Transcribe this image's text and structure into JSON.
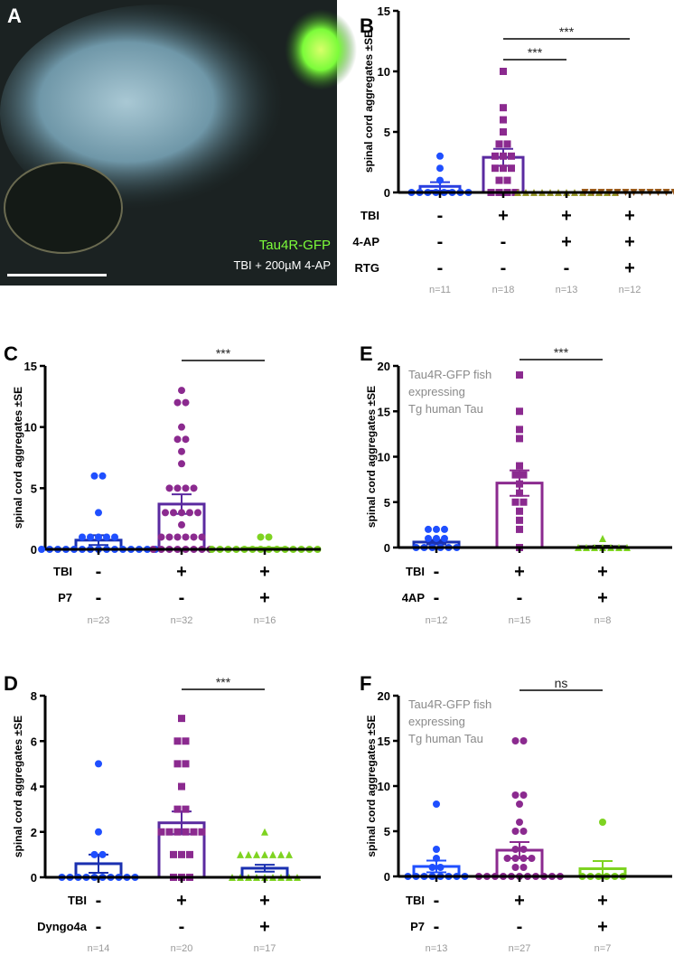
{
  "panel_a": {
    "letter": "A",
    "label_protein": "Tau4R-GFP",
    "label_condition": "TBI  + 200µM 4-AP",
    "colors": {
      "gfp": "#7CFC3A",
      "tissue": "#8fb8c8"
    }
  },
  "chart_data": [
    {
      "id": "B",
      "letter": "B",
      "type": "bar",
      "ylabel": "spinal cord aggregates ±SE",
      "ylim": [
        0,
        15
      ],
      "yticks": [
        0,
        5,
        10,
        15
      ],
      "conditions": [
        {
          "label": "TBI",
          "values": [
            "-",
            "+",
            "+",
            "+"
          ]
        },
        {
          "label": "4-AP",
          "values": [
            "-",
            "-",
            "+",
            "+"
          ]
        },
        {
          "label": "RTG",
          "values": [
            "-",
            "-",
            "-",
            "+"
          ]
        }
      ],
      "groups": [
        {
          "n": "n=11",
          "mean": 0.5,
          "se": 0.35,
          "color": "#1f4fff",
          "bar_color": "#2a3fe0",
          "marker": "circle",
          "points": [
            3,
            2,
            1,
            0,
            0,
            0,
            0,
            0,
            0,
            0,
            0
          ]
        },
        {
          "n": "n=18",
          "mean": 2.9,
          "se": 0.7,
          "color": "#8b2a8f",
          "bar_color": "#5a2aa0",
          "marker": "square",
          "points": [
            10,
            7,
            6,
            5,
            4,
            4,
            3,
            3,
            3,
            2,
            2,
            2,
            1,
            1,
            0,
            0,
            0,
            0
          ]
        },
        {
          "n": "n=13",
          "mean": 0,
          "se": 0,
          "color": "#9a9a2a",
          "bar_color": "#9a9a2a",
          "marker": "triangle-up",
          "points": [
            0,
            0,
            0,
            0,
            0,
            0,
            0,
            0,
            0,
            0,
            0,
            0,
            0
          ]
        },
        {
          "n": "n=12",
          "mean": 0,
          "se": 0,
          "color": "#9a5a1a",
          "bar_color": "#9a5a1a",
          "marker": "triangle-down",
          "points": [
            0,
            0,
            0,
            0,
            0,
            0,
            0,
            0,
            0,
            0,
            0,
            0
          ]
        }
      ],
      "comparisons": [
        {
          "from": 1,
          "to": 2,
          "label": "***"
        },
        {
          "from": 1,
          "to": 3,
          "label": "***"
        }
      ]
    },
    {
      "id": "C",
      "letter": "C",
      "type": "bar",
      "ylabel": "spinal cord aggregates ±SE",
      "ylim": [
        0,
        15
      ],
      "yticks": [
        0,
        5,
        10,
        15
      ],
      "conditions": [
        {
          "label": "TBI",
          "values": [
            "-",
            "+",
            "+"
          ]
        },
        {
          "label": "P7",
          "values": [
            "-",
            "-",
            "+"
          ]
        }
      ],
      "groups": [
        {
          "n": "n=23",
          "mean": 0.75,
          "se": 0.4,
          "color": "#1f4fff",
          "bar_color": "#1a30b0",
          "marker": "circle",
          "points": [
            6,
            6,
            3,
            1,
            1,
            1,
            1,
            1,
            0,
            0,
            0,
            0,
            0,
            0,
            0,
            0,
            0,
            0,
            0,
            0,
            0,
            0,
            0
          ]
        },
        {
          "n": "n=32",
          "mean": 3.7,
          "se": 0.8,
          "color": "#8b2a8f",
          "bar_color": "#5a2aa0",
          "marker": "circle",
          "points": [
            13,
            12,
            12,
            10,
            9,
            9,
            8,
            7,
            5,
            5,
            5,
            5,
            3,
            3,
            3,
            3,
            3,
            2,
            1,
            1,
            1,
            1,
            1,
            1,
            0,
            0,
            0,
            0,
            0,
            0,
            0,
            0
          ]
        },
        {
          "n": "n=16",
          "mean": 0.1,
          "se": 0.05,
          "color": "#7ed321",
          "bar_color": "#7ed321",
          "marker": "circle",
          "points": [
            1,
            1,
            0,
            0,
            0,
            0,
            0,
            0,
            0,
            0,
            0,
            0,
            0,
            0,
            0,
            0
          ]
        }
      ],
      "comparisons": [
        {
          "from": 1,
          "to": 2,
          "label": "***"
        }
      ]
    },
    {
      "id": "E",
      "letter": "E",
      "type": "bar",
      "ylabel": "spinal cord aggregates ±SE",
      "annotation": [
        "Tau4R-GFP fish",
        "expressing",
        "Tg human Tau"
      ],
      "ylim": [
        0,
        20
      ],
      "yticks": [
        0,
        5,
        10,
        15,
        20
      ],
      "conditions": [
        {
          "label": "TBI",
          "values": [
            "-",
            "+",
            "+"
          ]
        },
        {
          "label": "4AP",
          "values": [
            "-",
            "-",
            "+"
          ]
        }
      ],
      "groups": [
        {
          "n": "n=12",
          "mean": 0.6,
          "se": 0.25,
          "color": "#1f4fff",
          "bar_color": "#1a30b0",
          "marker": "circle",
          "points": [
            2,
            2,
            2,
            1,
            1,
            1,
            0,
            0,
            0,
            0,
            0,
            0
          ]
        },
        {
          "n": "n=15",
          "mean": 7.1,
          "se": 1.4,
          "color": "#8b2a8f",
          "bar_color": "#8b2a8f",
          "marker": "square",
          "points": [
            19,
            15,
            13,
            12,
            9,
            8,
            8,
            7,
            5,
            5,
            3,
            2,
            0,
            4,
            6
          ]
        },
        {
          "n": "n=8",
          "mean": 0.1,
          "se": 0.1,
          "color": "#7ed321",
          "bar_color": "#222",
          "marker": "triangle-up",
          "points": [
            1,
            0,
            0,
            0,
            0,
            0,
            0,
            0
          ]
        }
      ],
      "comparisons": [
        {
          "from": 1,
          "to": 2,
          "label": "***"
        }
      ]
    },
    {
      "id": "D",
      "letter": "D",
      "type": "bar",
      "ylabel": "spinal cord aggregates ±SE",
      "ylim": [
        0,
        8
      ],
      "yticks": [
        0,
        2,
        4,
        6,
        8
      ],
      "conditions": [
        {
          "label": "TBI",
          "values": [
            "-",
            "+",
            "+"
          ]
        },
        {
          "label": "Dyngo4a",
          "values": [
            "-",
            "-",
            "+"
          ]
        }
      ],
      "groups": [
        {
          "n": "n=14",
          "mean": 0.6,
          "se": 0.4,
          "color": "#1f4fff",
          "bar_color": "#1a30b0",
          "marker": "circle",
          "points": [
            5,
            2,
            1,
            1,
            0,
            0,
            0,
            0,
            0,
            0,
            0,
            0,
            0,
            0
          ]
        },
        {
          "n": "n=20",
          "mean": 2.4,
          "se": 0.5,
          "color": "#8b2a8f",
          "bar_color": "#5a2aa0",
          "marker": "square",
          "points": [
            7,
            6,
            6,
            5,
            5,
            4,
            3,
            3,
            2,
            2,
            2,
            2,
            2,
            2,
            1,
            1,
            1,
            0,
            0,
            0
          ]
        },
        {
          "n": "n=17",
          "mean": 0.4,
          "se": 0.15,
          "color": "#7ed321",
          "bar_color": "#1a30b0",
          "marker": "triangle-up",
          "points": [
            2,
            1,
            1,
            1,
            1,
            1,
            1,
            1,
            0,
            0,
            0,
            0,
            0,
            0,
            0,
            0,
            0
          ]
        }
      ],
      "comparisons": [
        {
          "from": 1,
          "to": 2,
          "label": "***"
        }
      ]
    },
    {
      "id": "F",
      "letter": "F",
      "type": "bar",
      "ylabel": "spinal cord aggregates ±SE",
      "annotation": [
        "Tau4R-GFP fish",
        "expressing",
        "Tg human Tau"
      ],
      "ylim": [
        0,
        20
      ],
      "yticks": [
        0,
        5,
        10,
        15,
        20
      ],
      "conditions": [
        {
          "label": "TBI",
          "values": [
            "-",
            "+",
            "+"
          ]
        },
        {
          "label": "P7",
          "values": [
            "-",
            "-",
            "+"
          ]
        }
      ],
      "groups": [
        {
          "n": "n=13",
          "mean": 1.1,
          "se": 0.65,
          "color": "#1f4fff",
          "bar_color": "#1f4fff",
          "marker": "circle",
          "points": [
            8,
            3,
            2,
            1,
            1,
            0,
            0,
            0,
            0,
            0,
            0,
            0,
            0
          ]
        },
        {
          "n": "n=27",
          "mean": 2.9,
          "se": 0.9,
          "color": "#8b2a8f",
          "bar_color": "#8b2a8f",
          "marker": "circle",
          "points": [
            15,
            15,
            9,
            9,
            8,
            6,
            5,
            5,
            3,
            3,
            2,
            2,
            2,
            2,
            1,
            1,
            0,
            0,
            0,
            0,
            0,
            0,
            0,
            0,
            0,
            0,
            0
          ]
        },
        {
          "n": "n=7",
          "mean": 0.85,
          "se": 0.85,
          "color": "#7ed321",
          "bar_color": "#7ed321",
          "marker": "circle",
          "points": [
            6,
            0,
            0,
            0,
            0,
            0,
            0
          ]
        }
      ],
      "comparisons": [
        {
          "from": 1,
          "to": 2,
          "label": "ns"
        }
      ]
    }
  ]
}
